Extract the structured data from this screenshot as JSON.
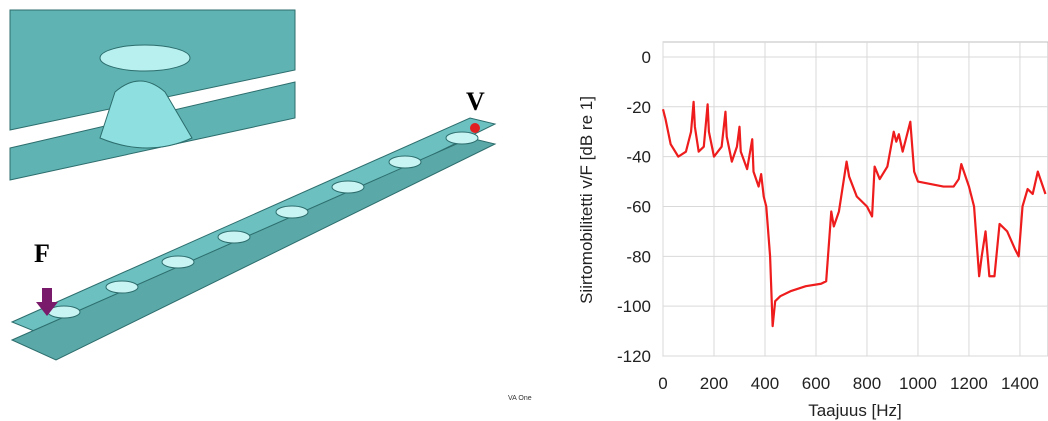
{
  "figure_labels": {
    "force": "F",
    "velocity": "V",
    "software_mark": "VA One"
  },
  "chart_data": {
    "type": "line",
    "ylabel": "Siirtomobilitetti v/F   [dB re 1]",
    "xlabel": "Taajuus [Hz]",
    "xlim": [
      0,
      1510
    ],
    "ylim": [
      -120,
      6
    ],
    "xticks": [
      0,
      200,
      400,
      600,
      800,
      1000,
      1200,
      1400
    ],
    "yticks": [
      0,
      -20,
      -40,
      -60,
      -80,
      -100,
      -120
    ],
    "grid": true,
    "x": [
      0,
      10,
      30,
      60,
      90,
      110,
      120,
      125,
      140,
      160,
      175,
      180,
      200,
      230,
      245,
      250,
      270,
      290,
      300,
      305,
      330,
      350,
      355,
      375,
      385,
      395,
      405,
      420,
      430,
      440,
      460,
      500,
      560,
      620,
      640,
      660,
      670,
      690,
      720,
      730,
      760,
      800,
      820,
      830,
      850,
      880,
      905,
      915,
      925,
      940,
      960,
      970,
      985,
      1000,
      1050,
      1100,
      1140,
      1160,
      1170,
      1200,
      1220,
      1240,
      1250,
      1265,
      1280,
      1300,
      1320,
      1350,
      1380,
      1395,
      1410,
      1430,
      1450,
      1470,
      1500
    ],
    "series": [
      {
        "color": "#ee1c1c",
        "values": [
          -21,
          -25,
          -35,
          -40,
          -38,
          -30,
          -18,
          -28,
          -38,
          -36,
          -19,
          -30,
          -40,
          -36,
          -22,
          -32,
          -42,
          -36,
          -28,
          -38,
          -45,
          -33,
          -46,
          -52,
          -47,
          -56,
          -60,
          -80,
          -108,
          -98,
          -96,
          -94,
          -92,
          -91,
          -90,
          -62,
          -68,
          -62,
          -42,
          -48,
          -56,
          -60,
          -64,
          -44,
          -49,
          -44,
          -30,
          -34,
          -31,
          -38,
          -30,
          -26,
          -46,
          -50,
          -51,
          -52,
          -52,
          -49,
          -43,
          -52,
          -60,
          -88,
          -80,
          -70,
          -88,
          -88,
          -67,
          -70,
          -77,
          -80,
          -60,
          -53,
          -55,
          -46,
          -55
        ]
      }
    ]
  }
}
